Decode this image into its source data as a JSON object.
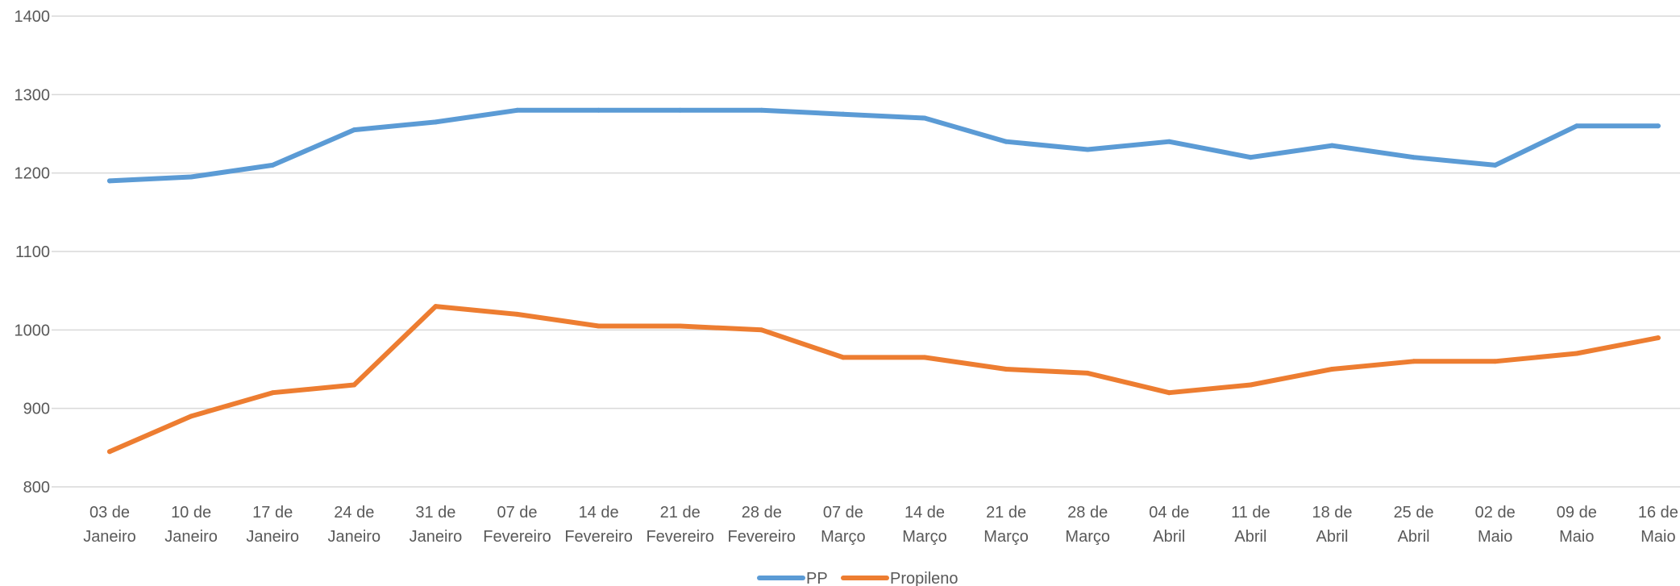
{
  "chart_data": {
    "type": "line",
    "title": "",
    "xlabel": "",
    "ylabel": "",
    "ylim": [
      800,
      1400
    ],
    "yticks": [
      800,
      900,
      1000,
      1100,
      1200,
      1300,
      1400
    ],
    "grid": true,
    "legend_position": "bottom",
    "categories": [
      [
        "03 de",
        "Janeiro"
      ],
      [
        "10 de",
        "Janeiro"
      ],
      [
        "17 de",
        "Janeiro"
      ],
      [
        "24 de",
        "Janeiro"
      ],
      [
        "31 de",
        "Janeiro"
      ],
      [
        "07 de",
        "Fevereiro"
      ],
      [
        "14 de",
        "Fevereiro"
      ],
      [
        "21 de",
        "Fevereiro"
      ],
      [
        "28 de",
        "Fevereiro"
      ],
      [
        "07 de",
        "Março"
      ],
      [
        "14 de",
        "Março"
      ],
      [
        "21 de",
        "Março"
      ],
      [
        "28 de",
        "Março"
      ],
      [
        "04 de",
        "Abril"
      ],
      [
        "11 de",
        "Abril"
      ],
      [
        "18 de",
        "Abril"
      ],
      [
        "25 de",
        "Abril"
      ],
      [
        "02 de",
        "Maio"
      ],
      [
        "09 de",
        "Maio"
      ],
      [
        "16 de",
        "Maio"
      ]
    ],
    "series": [
      {
        "name": "PP",
        "color": "#5b9bd5",
        "values": [
          1190,
          1195,
          1210,
          1255,
          1265,
          1280,
          1280,
          1280,
          1280,
          1275,
          1270,
          1240,
          1230,
          1240,
          1220,
          1235,
          1220,
          1210,
          1260,
          1260
        ]
      },
      {
        "name": "Propileno",
        "color": "#ed7d31",
        "values": [
          845,
          890,
          920,
          930,
          1030,
          1020,
          1005,
          1005,
          1000,
          965,
          965,
          950,
          945,
          920,
          930,
          950,
          960,
          960,
          970,
          990
        ]
      }
    ]
  }
}
